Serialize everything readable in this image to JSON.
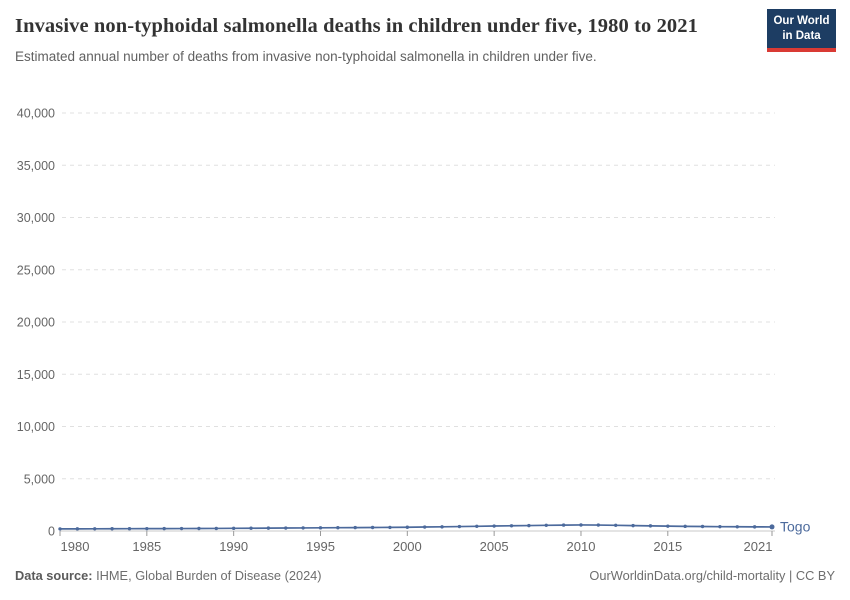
{
  "header": {
    "title": "Invasive non-typhoidal salmonella deaths in children under five, 1980 to 2021",
    "subtitle": "Estimated annual number of deaths from invasive non-typhoidal salmonella in children under five.",
    "logo": {
      "line1": "Our World",
      "line2": "in Data",
      "bg_color": "#1d3d63",
      "stripe_color": "#d93a34"
    }
  },
  "chart_data": {
    "type": "line",
    "title": "Invasive non-typhoidal salmonella deaths in children under five, 1980 to 2021",
    "xlabel": "",
    "ylabel": "",
    "x": [
      1980,
      1981,
      1982,
      1983,
      1984,
      1985,
      1986,
      1987,
      1988,
      1989,
      1990,
      1991,
      1992,
      1993,
      1994,
      1995,
      1996,
      1997,
      1998,
      1999,
      2000,
      2001,
      2002,
      2003,
      2004,
      2005,
      2006,
      2007,
      2008,
      2009,
      2010,
      2011,
      2012,
      2013,
      2014,
      2015,
      2016,
      2017,
      2018,
      2019,
      2020,
      2021
    ],
    "series": [
      {
        "name": "Togo",
        "color": "#4c6a9c",
        "values": [
          200,
          205,
          210,
          215,
          220,
          225,
          230,
          235,
          240,
          245,
          255,
          265,
          275,
          285,
          295,
          305,
          315,
          325,
          335,
          345,
          360,
          380,
          400,
          425,
          450,
          475,
          500,
          520,
          545,
          565,
          580,
          570,
          545,
          515,
          490,
          465,
          445,
          430,
          415,
          405,
          395,
          390
        ]
      }
    ],
    "ylim": [
      0,
      40000
    ],
    "yticks": [
      0,
      5000,
      10000,
      15000,
      20000,
      25000,
      30000,
      35000,
      40000
    ],
    "xticks": [
      1980,
      1985,
      1990,
      1995,
      2000,
      2005,
      2010,
      2015,
      2021
    ],
    "grid": "horizontal-dashed",
    "legend": "end-of-line-label",
    "colors": {
      "gridline": "#e0e0e0",
      "zero_line": "#c8c8c8",
      "tick": "#999999",
      "axis_label": "#666666"
    }
  },
  "footer": {
    "source_label": "Data source:",
    "source_text": " IHME, Global Burden of Disease (2024)",
    "right_text": "OurWorldinData.org/child-mortality | CC BY"
  }
}
